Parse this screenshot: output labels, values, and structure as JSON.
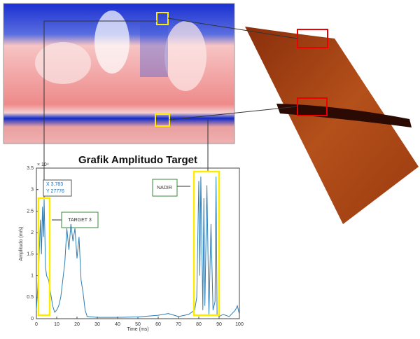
{
  "chart_data": {
    "type": "line",
    "title": "Grafik Amplitudo Target",
    "xlabel": "Time (ms)",
    "ylabel": "Amplitudo (m/s)",
    "y_multiplier": "× 10⁴",
    "x": [
      0,
      1,
      2,
      2.5,
      3,
      3.5,
      3.8,
      4.5,
      5,
      6,
      7,
      8,
      9,
      10,
      11,
      12,
      13,
      14,
      15,
      16,
      17,
      18,
      19,
      20,
      21,
      22,
      23,
      24,
      25,
      30,
      40,
      50,
      60,
      65,
      70,
      75,
      78,
      79,
      80,
      80.5,
      81,
      82,
      82.5,
      83,
      84,
      85,
      86,
      87,
      88,
      88.5,
      89,
      90,
      92,
      95,
      98,
      99,
      100
    ],
    "series": [
      {
        "color": "#2e7db5",
        "values": [
          0.2,
          1.0,
          2.3,
          1.5,
          2.6,
          1.9,
          2.78,
          1.2,
          1.0,
          0.9,
          0.6,
          0.3,
          0.15,
          0.2,
          0.3,
          0.5,
          0.9,
          1.3,
          2.1,
          1.6,
          2.2,
          1.8,
          2.1,
          1.4,
          1.9,
          0.9,
          0.6,
          0.2,
          0.05,
          0.03,
          0.03,
          0.04,
          0.08,
          0.12,
          0.05,
          0.1,
          0.2,
          0.5,
          3.2,
          1.0,
          3.3,
          0.2,
          2.8,
          0.3,
          3.1,
          0.1,
          2.2,
          0.2,
          0.4,
          3.3,
          0.1,
          0.05,
          0.1,
          0.05,
          0.2,
          0.3,
          0.1
        ]
      }
    ],
    "xlim": [
      0,
      100
    ],
    "xticks": [
      0,
      10,
      20,
      30,
      40,
      50,
      60,
      70,
      80,
      90,
      100
    ],
    "ylim": [
      0,
      3.5
    ],
    "yticks": [
      0,
      0.5,
      1,
      1.5,
      2,
      2.5,
      3,
      3.5
    ],
    "grid": false,
    "annotations": {
      "data_tip_x": "X 3.783",
      "data_tip_y": "Y 27776",
      "target": "TARGET 3",
      "nadir": "NADIR"
    }
  }
}
